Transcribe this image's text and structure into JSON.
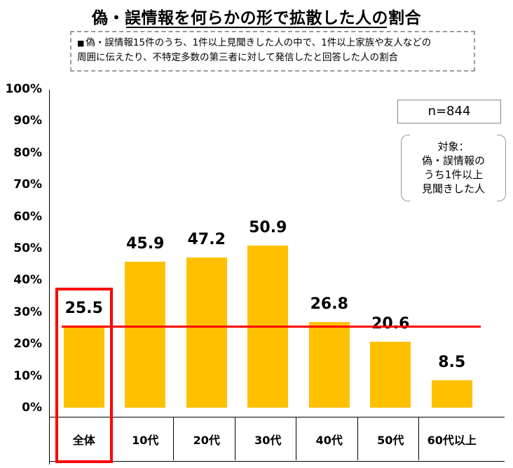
{
  "title": "偽・誤情報を何らかの形で拡散した人の割合",
  "note": "偽・誤情報15件のうち、1件以上見聞きした人の中で、1件以上家族や友人などの周囲に伝えたり、不特定多数の第三者に対して発信したと回答した人の割合",
  "note_line1": "偽・誤情報15件のうち、1件以上見聞きした人の中で、1件以上家族や友人などの",
  "note_line2": "周囲に伝えたり、不特定多数の第三者に対して発信したと回答した人の割合",
  "n_label": "n=844",
  "target_box": {
    "line1": "対象：",
    "line2": "偽・誤情報の",
    "line3": "うち1件以上",
    "line4": "見聞きした人"
  },
  "colors": {
    "bar": "#ffc000",
    "average_line": "#ff0000",
    "highlight": "#ff0000"
  },
  "chart_data": {
    "type": "bar",
    "title": "偽・誤情報を何らかの形で拡散した人の割合",
    "categories": [
      "全体",
      "10代",
      "20代",
      "30代",
      "40代",
      "50代",
      "60代以上"
    ],
    "values": [
      25.5,
      45.9,
      47.2,
      50.9,
      26.8,
      20.6,
      8.5
    ],
    "value_labels": [
      "25.5",
      "45.9",
      "47.2",
      "50.9",
      "26.8",
      "20.6",
      "8.5"
    ],
    "ylim": [
      0,
      100
    ],
    "yticks": [
      "0%",
      "10%",
      "20%",
      "30%",
      "40%",
      "50%",
      "60%",
      "70%",
      "80%",
      "90%",
      "100%"
    ],
    "reference_line": 25.5,
    "highlighted_category": "全体",
    "grid": false,
    "legend": "none"
  }
}
